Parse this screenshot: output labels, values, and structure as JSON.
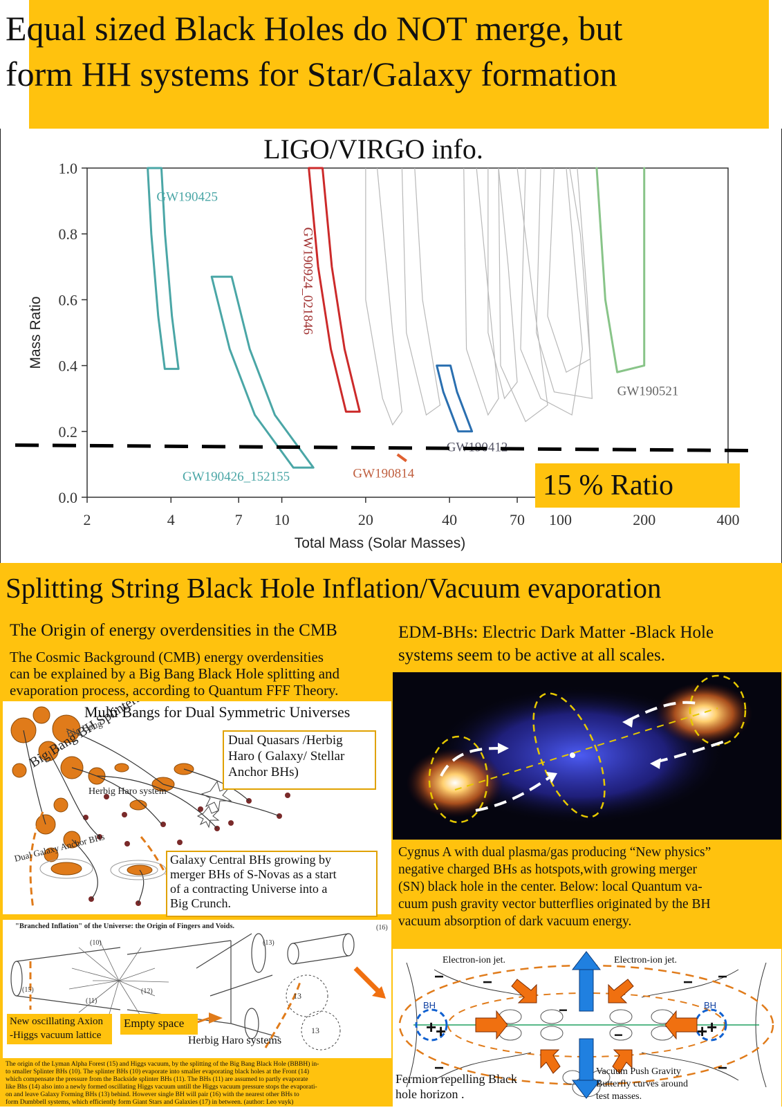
{
  "title": {
    "line1": "Equal sized Black Holes do NOT merge, but",
    "line2": "form HH systems for Star/Galaxy formation"
  },
  "chart_data": {
    "type": "scatter",
    "title": "LIGO/VIRGO info.",
    "xlabel": "Total Mass (Solar Masses)",
    "ylabel": "Mass Ratio",
    "xscale": "log",
    "xlim": [
      2,
      400
    ],
    "ylim": [
      0.0,
      1.0
    ],
    "xticks": [
      "2",
      "4",
      "7",
      "10",
      "20",
      "40",
      "70",
      "100",
      "200",
      "400"
    ],
    "yticks": [
      "0.0",
      "0.2",
      "0.4",
      "0.6",
      "0.8",
      "1.0"
    ],
    "grid": false,
    "series": [
      {
        "name": "GW190425",
        "color": "#4aa6a6",
        "points": [
          [
            3.3,
            1.0
          ],
          [
            3.4,
            0.8
          ],
          [
            3.6,
            0.55
          ],
          [
            3.8,
            0.39
          ]
        ]
      },
      {
        "name": "GW190426_152155",
        "color": "#4aa6a6",
        "points": [
          [
            5.6,
            0.67
          ],
          [
            6.5,
            0.45
          ],
          [
            8.0,
            0.25
          ],
          [
            11.0,
            0.09
          ]
        ]
      },
      {
        "name": "GW190924_021846",
        "color": "#cc2a2a",
        "points": [
          [
            12.5,
            1.0
          ],
          [
            13.5,
            0.7
          ],
          [
            15.0,
            0.45
          ],
          [
            17.0,
            0.26
          ]
        ]
      },
      {
        "name": "GW190814",
        "color": "#e06030",
        "points": [
          [
            26,
            0.13
          ],
          [
            28,
            0.11
          ]
        ]
      },
      {
        "name": "GW190412",
        "color": "#2a6fb0",
        "points": [
          [
            36,
            0.4
          ],
          [
            38,
            0.32
          ],
          [
            43,
            0.2
          ]
        ]
      },
      {
        "name": "GW190521",
        "color": "#88c488",
        "points": [
          [
            135,
            1.0
          ],
          [
            145,
            0.6
          ],
          [
            160,
            0.38
          ],
          [
            200,
            0.4
          ],
          [
            200,
            1.0
          ]
        ]
      }
    ],
    "labels": [
      "GW190425",
      "GW190924_021846",
      "GW190521",
      "GW190412",
      "GW190426_152155",
      "GW190814"
    ],
    "reference_line": {
      "y": 0.15,
      "style": "dashed",
      "label": "15 % Ratio"
    }
  },
  "bottom": {
    "section_title": "Splitting String Black Hole Inflation/Vacuum evaporation",
    "origin_heading": "The Origin of energy overdensities in the CMB",
    "origin_text": [
      "The Cosmic Background (CMB) energy overdensities",
      "can be explained by a Big Bang Black Hole splitting and",
      "evaporation process, according to Quantum FFF Theory."
    ],
    "edm_text": [
      "EDM-BHs: Electric Dark Matter -Black Hole",
      "systems seem to be active at all scales."
    ],
    "sketch": {
      "multi_bangs": "Multi Bangs for Dual Symmetric Universes",
      "dual_quasars": [
        "Dual Quasars /Herbig",
        "Haro ( Galaxy/ Stellar",
        "Anchor BHs)"
      ],
      "big_bang_splinters": "Big Bang BH Splinters",
      "big_bang": "Big Bang",
      "herbig_haro_system": "Herbig Haro system",
      "dual_galaxy_anchor": "Dual Galaxy Anchor BHs",
      "galaxy_central": [
        "Galaxy Central BHs growing by",
        "merger BHs of S-Novas as a start",
        "of a contracting Universe into a",
        "Big Crunch."
      ]
    },
    "inflation": {
      "heading": "\"Branched Inflation\" of the Universe: the Origin of Fingers and Voids.",
      "axion": [
        "New oscillating Axion",
        "-Higgs vacuum lattice"
      ],
      "empty_space": "Empty space",
      "herbig_haro_systems": "Herbig Haro systems",
      "numbers": [
        "(10)",
        "(11)",
        "(12)",
        "(13)",
        "(15)",
        "(16)",
        "13",
        "13"
      ]
    },
    "fine_print": [
      "The origin of the Lyman Alpha Forest (15) and Higgs vacuum, by the splitting of the Big Bang Black Hole (BBBH) in-",
      "to smaller Splinter BHs (10).    The splinter BHs (10) evaporate into smaller evaporating black holes at the Front (14)",
      "which compensate the pressure from the Backside splinter BHs (11).     The BHs (11) are assumed to partly evaporate",
      "like Bhs (14) also into a newly formed oscillating Higgs vacuum untill the Higgs vacuum pressure stops the evaporati-",
      "on and leave Galaxy Forming BHs (13)  behind.        However single BH will pair (16) with the nearest other BHs to",
      "form Dumbbell systems, which efficiently form Giant Stars and Galaxies (17) in between. (author: Leo vuyk)"
    ],
    "cygnus_caption": [
      "Cygnus A with dual plasma/gas producing “New physics”",
      "negative charged BHs as hotspots,with growing merger",
      "(SN) black hole in the center.  Below: local Quantum va-",
      "cuum push gravity vector butterflies originated by the BH",
      "vacuum absorption of dark vacuum energy."
    ],
    "butterfly": {
      "jet_left": "Electron-ion jet.",
      "jet_right": "Electron-ion jet.",
      "bh_left": "BH",
      "bh_right": "BH",
      "fermion": [
        "Fermion repelling Black",
        "hole horizon ."
      ],
      "vacuum": [
        "Vacuum Push Gravity",
        "Butterfly curves around",
        "test masses."
      ]
    }
  },
  "colors": {
    "banner": "#ffc20e",
    "box_border": "#e0a100",
    "teal": "#4aa6a6",
    "red": "#cc2a2a",
    "blue": "#2a6fb0",
    "green": "#88c488",
    "orange": "#e06030"
  }
}
